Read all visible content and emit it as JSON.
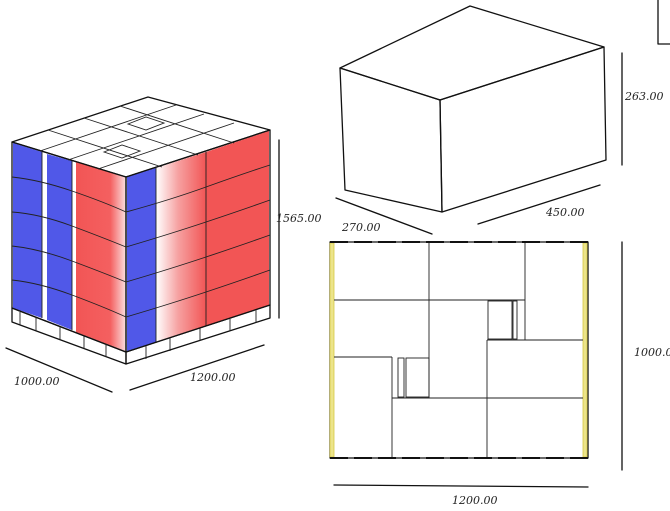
{
  "colors": {
    "blue": "#5058e8",
    "red": "#f25555",
    "red_light": "#fbd0d0",
    "yellow": "#ece48a",
    "yellow_edge": "#d6c844",
    "outline": "#111111",
    "background": "#ffffff"
  },
  "pallet_view": {
    "dims": {
      "height": "1565.00",
      "width": "1000.00",
      "length": "1200.00"
    }
  },
  "box_view": {
    "dims": {
      "height": "263.00",
      "width": "270.00",
      "length": "450.00"
    }
  },
  "top_view": {
    "dims": {
      "width": "1200.00",
      "height": "1000.00"
    }
  }
}
